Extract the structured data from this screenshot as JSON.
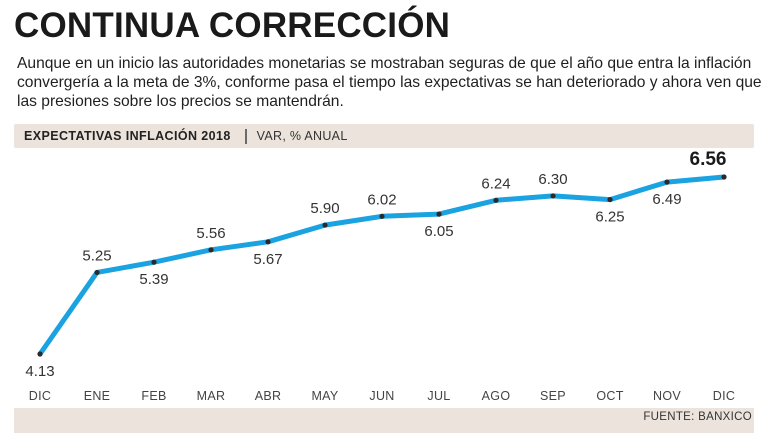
{
  "headline": "CONTINUA CORRECCIÓN",
  "deck": "Aunque en un inicio las autoridades monetarias se mostraban seguras de que el año que entra la inflación convergería a la meta de 3%, conforme pasa el tiempo las expectativas se han deteriorado y ahora ven que las presiones sobre los precios se mantendrán.",
  "band": {
    "title": "EXPECTATIVAS INFLACIÓN 2018",
    "unit": "VAR, % ANUAL"
  },
  "source": "FUENTE: BANXICO",
  "colors": {
    "line": "#1aa3e0",
    "band": "#ece4dc",
    "point": "#2a2a2a"
  },
  "chart_data": {
    "type": "line",
    "title": "EXPECTATIVAS INFLACIÓN 2018",
    "ylabel": "VAR, % ANUAL",
    "categories": [
      "DIC",
      "ENE",
      "FEB",
      "MAR",
      "ABR",
      "MAY",
      "JUN",
      "JUL",
      "AGO",
      "SEP",
      "OCT",
      "NOV",
      "DIC"
    ],
    "values": [
      4.13,
      5.25,
      5.39,
      5.56,
      5.67,
      5.9,
      6.02,
      6.05,
      6.24,
      6.3,
      6.25,
      6.49,
      6.56
    ],
    "labels": [
      "4.13",
      "5.25",
      "5.39",
      "5.56",
      "5.67",
      "5.90",
      "6.02",
      "6.05",
      "6.24",
      "6.30",
      "6.25",
      "6.49",
      "6.56"
    ],
    "label_position": [
      "below",
      "above",
      "below",
      "above",
      "below",
      "above",
      "above",
      "below",
      "above",
      "above",
      "below",
      "below",
      "above"
    ],
    "grid": false,
    "legend": "none"
  }
}
